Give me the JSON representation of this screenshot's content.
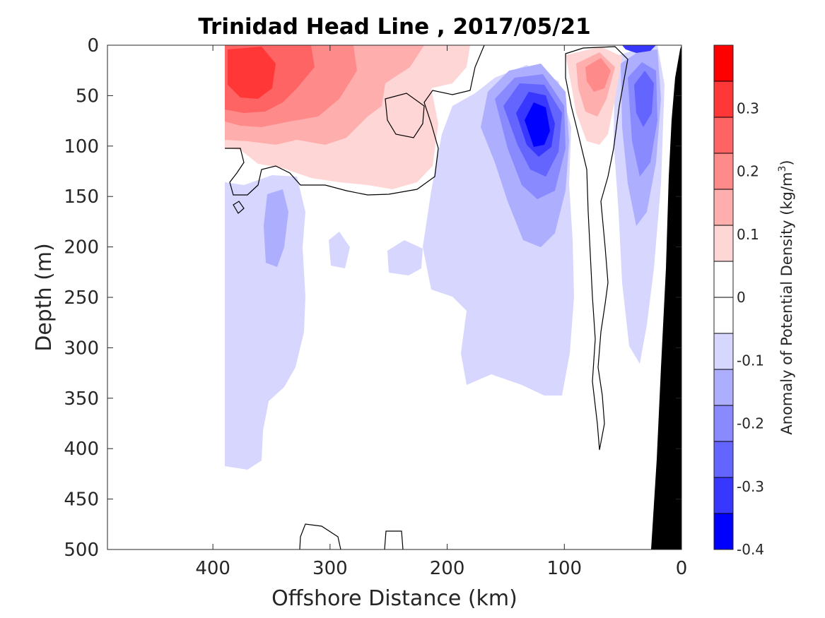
{
  "chart_data": {
    "type": "contour",
    "title": "Trinidad Head Line , 2017/05/21",
    "xlabel": "Offshore Distance (km)",
    "ylabel": "Depth (m)",
    "colorbar_label": "Anomaly of Potential Density (kg/m",
    "colorbar_label_sup": "3",
    "colorbar_label_close": ")",
    "xlim": [
      490,
      0
    ],
    "ylim": [
      0,
      500
    ],
    "x_reversed": true,
    "y_reversed": true,
    "x_ticks": [
      "400",
      "300",
      "200",
      "100",
      "0"
    ],
    "x_tick_values": [
      400,
      300,
      200,
      100,
      0
    ],
    "y_ticks": [
      "0",
      "50",
      "100",
      "150",
      "200",
      "250",
      "300",
      "350",
      "400",
      "450",
      "500"
    ],
    "y_tick_values": [
      0,
      50,
      100,
      150,
      200,
      250,
      300,
      350,
      400,
      450,
      500
    ],
    "colorbar": {
      "range": [
        -0.4,
        0.4
      ],
      "tick_labels": [
        "0.3",
        "0.2",
        "0.1",
        "0",
        "-0.1",
        "-0.2",
        "-0.3",
        "-0.4"
      ],
      "tick_values": [
        0.3,
        0.2,
        0.1,
        0,
        -0.1,
        -0.2,
        -0.3,
        -0.4
      ],
      "levels": [
        0.4,
        0.35,
        0.3,
        0.25,
        0.2,
        0.15,
        0.1,
        0.05,
        0,
        -0.05,
        -0.1,
        -0.15,
        -0.2,
        -0.25,
        -0.3,
        -0.35,
        -0.4
      ],
      "colors": [
        "#ff0000",
        "#ff3737",
        "#ff6464",
        "#ff8a8a",
        "#ffaeae",
        "#ffd6d6",
        "#ffffff",
        "#ffffff",
        "#d6d6ff",
        "#aeaeff",
        "#8a8aff",
        "#6464ff",
        "#3737ff",
        "#0000ff"
      ]
    },
    "features": [
      {
        "name": "Positive anomaly core, offshore",
        "x_range": [
          390,
          180
        ],
        "depth_range": [
          0,
          150
        ],
        "peak_value": 0.3,
        "peak_at": {
          "x": 375,
          "depth": 40
        }
      },
      {
        "name": "Negative anomaly core, mid-shelf",
        "x_range": [
          180,
          95
        ],
        "depth_range": [
          0,
          200
        ],
        "peak_value": -0.3,
        "peak_at": {
          "x": 125,
          "depth": 85
        }
      },
      {
        "name": "Positive anomaly, near-shore",
        "x_range": [
          95,
          55
        ],
        "depth_range": [
          0,
          100
        ],
        "peak_value": 0.15,
        "peak_at": {
          "x": 72,
          "depth": 25
        }
      },
      {
        "name": "Negative anomaly, coastal",
        "x_range": [
          55,
          22
        ],
        "depth_range": [
          0,
          330
        ],
        "peak_value": -0.2,
        "peak_at": {
          "x": 35,
          "depth": 55
        }
      },
      {
        "name": "Weak negative anomaly, deep offshore",
        "x_range": [
          390,
          100
        ],
        "depth_range": [
          150,
          425
        ],
        "peak_value": -0.1
      },
      {
        "name": "Bathymetry (seafloor)",
        "color": "#000000",
        "x_range": [
          25,
          0
        ],
        "depth_range": [
          0,
          500
        ]
      }
    ],
    "zero_contour_color": "#000000",
    "data_extent_km": [
      390,
      0
    ]
  }
}
